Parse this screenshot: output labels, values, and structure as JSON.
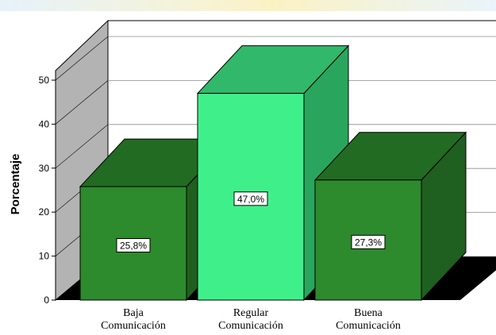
{
  "chart_data": {
    "type": "bar",
    "categories": [
      [
        "Baja",
        "Comunicación"
      ],
      [
        "Regular",
        "Comunicación"
      ],
      [
        "Buena",
        "Comunicación"
      ]
    ],
    "values": [
      25.8,
      47.0,
      27.3
    ],
    "data_labels": [
      "25,8%",
      "47,0%",
      "27,3%"
    ],
    "title": "",
    "xlabel": "",
    "ylabel": "Porcentaje",
    "ylim": [
      0,
      50
    ],
    "yticks": [
      "0",
      "10",
      "20",
      "30",
      "40",
      "50"
    ],
    "grid": true,
    "three_d": true,
    "colors": {
      "bar_default_front": "#2d8a2d",
      "bar_default_side": "#1f5f1f",
      "bar_default_top": "#226b22",
      "bar_highlight_front": "#3ff08a",
      "bar_highlight_side": "#2aa55e",
      "bar_highlight_top": "#31b86a",
      "back_wall": "#ffffff",
      "side_wall": "#b3b3b3",
      "floor": "#000000"
    },
    "highlight_index": 1
  }
}
